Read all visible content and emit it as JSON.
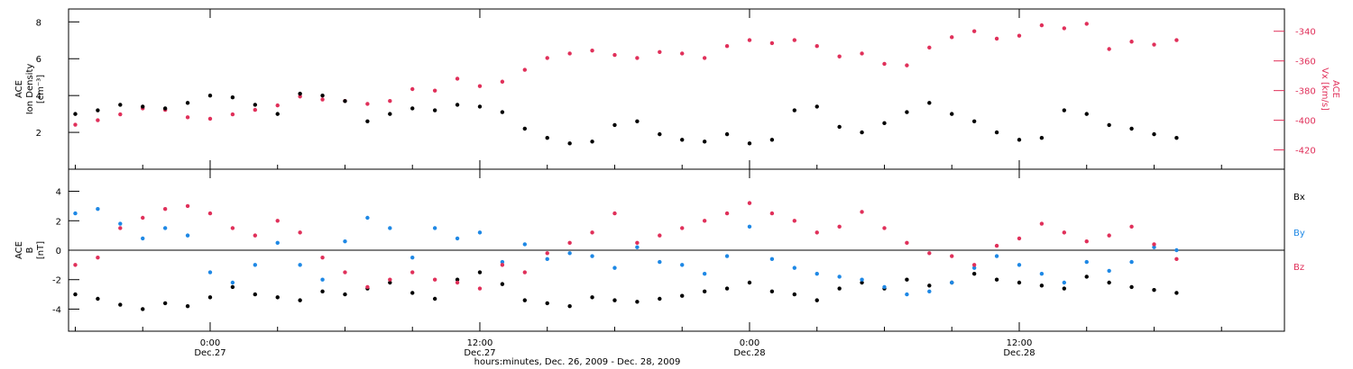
{
  "chart_data": [
    {
      "type": "scatter",
      "panel": "top",
      "ylabel_lines": [
        "ACE",
        "Ion Density",
        "[cm⁻³]"
      ],
      "ylim": [
        0,
        8.7
      ],
      "yticks": [
        2,
        4,
        6,
        8
      ],
      "y2label_lines": [
        "ACE",
        "Vx [km/s]"
      ],
      "y2lim": [
        -433,
        -325
      ],
      "y2ticks": [
        -340,
        -360,
        -380,
        -400,
        -420
      ],
      "series": [
        {
          "axis": "left",
          "color": "#000000",
          "x": [
            -6,
            -5,
            -4,
            -3,
            -2,
            -1,
            0,
            1,
            2,
            3,
            4,
            5,
            6,
            7,
            8,
            9,
            10,
            11,
            12,
            13,
            14,
            15,
            16,
            17,
            18,
            19,
            20,
            21,
            22,
            23,
            24,
            25,
            26,
            27,
            28,
            29,
            30,
            31,
            32,
            33,
            34,
            35,
            36,
            37,
            38,
            39,
            40,
            41,
            42,
            43
          ],
          "y": [
            3.0,
            3.2,
            3.5,
            3.4,
            3.3,
            3.6,
            4.0,
            3.9,
            3.5,
            3.0,
            4.1,
            4.0,
            3.7,
            2.6,
            3.0,
            3.3,
            3.2,
            3.5,
            3.4,
            3.1,
            2.2,
            1.7,
            1.4,
            1.5,
            2.4,
            2.6,
            1.9,
            1.6,
            1.5,
            1.9,
            1.4,
            1.6,
            3.2,
            3.4,
            2.3,
            2.0,
            2.5,
            3.1,
            3.6,
            3.0,
            2.6,
            2.0,
            1.6,
            1.7,
            3.2,
            3.0,
            2.4,
            2.2,
            1.9,
            1.7
          ]
        },
        {
          "axis": "right",
          "color": "#e0305a",
          "x": [
            -6,
            -5,
            -4,
            -3,
            -2,
            -1,
            0,
            1,
            2,
            3,
            4,
            5,
            6,
            7,
            8,
            9,
            10,
            11,
            12,
            13,
            14,
            15,
            16,
            17,
            18,
            19,
            20,
            21,
            22,
            23,
            24,
            25,
            26,
            27,
            28,
            29,
            30,
            31,
            32,
            33,
            34,
            35,
            36,
            37,
            38,
            39,
            40,
            41,
            42,
            43
          ],
          "y": [
            -403,
            -400,
            -396,
            -392,
            -393,
            -398,
            -399,
            -396,
            -393,
            -390,
            -384,
            -386,
            -387,
            -389,
            -387,
            -379,
            -380,
            -372,
            -377,
            -374,
            -366,
            -358,
            -355,
            -353,
            -356,
            -358,
            -354,
            -355,
            -358,
            -350,
            -346,
            -348,
            -346,
            -350,
            -357,
            -355,
            -362,
            -363,
            -351,
            -344,
            -340,
            -345,
            -343,
            -336,
            -338,
            -335,
            -352,
            -347,
            -349,
            -346
          ]
        }
      ]
    },
    {
      "type": "scatter",
      "panel": "bottom",
      "ylabel_lines": [
        "ACE",
        "B",
        "[nT]"
      ],
      "ylim": [
        -5.5,
        5.5
      ],
      "yticks": [
        -4,
        -2,
        0,
        2,
        4
      ],
      "xtick_labels": [
        [
          "0:00",
          "Dec.27"
        ],
        [
          "12:00",
          "Dec.27"
        ],
        [
          "0:00",
          "Dec.28"
        ],
        [
          "12:00",
          "Dec.28"
        ]
      ],
      "xticks_hours": [
        0,
        12,
        24,
        36
      ],
      "xlim_hours": [
        -6.3,
        47.8
      ],
      "xlabel": "hours:minutes, Dec. 26, 2009 - Dec. 28, 2009",
      "series": [
        {
          "name": "Bx",
          "color": "#000000",
          "x": [
            -6,
            -5,
            -4,
            -3,
            -2,
            -1,
            0,
            1,
            2,
            3,
            4,
            5,
            6,
            7,
            8,
            9,
            10,
            11,
            12,
            13,
            14,
            15,
            16,
            17,
            18,
            19,
            20,
            21,
            22,
            23,
            24,
            25,
            26,
            27,
            28,
            29,
            30,
            31,
            32,
            33,
            34,
            35,
            36,
            37,
            38,
            39,
            40,
            41,
            42,
            43
          ],
          "y": [
            -3.0,
            -3.3,
            -3.7,
            -4.0,
            -3.6,
            -3.8,
            -3.2,
            -2.5,
            -3.0,
            -3.2,
            -3.4,
            -2.8,
            -3.0,
            -2.6,
            -2.2,
            -2.9,
            -3.3,
            -2.0,
            -1.5,
            -2.3,
            -3.4,
            -3.6,
            -3.8,
            -3.2,
            -3.4,
            -3.5,
            -3.3,
            -3.1,
            -2.8,
            -2.6,
            -2.2,
            -2.8,
            -3.0,
            -3.4,
            -2.6,
            -2.2,
            -2.6,
            -2.0,
            -2.4,
            -2.2,
            -1.6,
            -2.0,
            -2.2,
            -2.4,
            -2.6,
            -1.8,
            -2.2,
            -2.5,
            -2.7,
            -2.9
          ]
        },
        {
          "name": "By",
          "color": "#1e88e5",
          "x": [
            -6,
            -5,
            -4,
            -3,
            -2,
            -1,
            0,
            1,
            2,
            3,
            4,
            5,
            6,
            7,
            8,
            9,
            10,
            11,
            12,
            13,
            14,
            15,
            16,
            17,
            18,
            19,
            20,
            21,
            22,
            23,
            24,
            25,
            26,
            27,
            28,
            29,
            30,
            31,
            32,
            33,
            34,
            35,
            36,
            37,
            38,
            39,
            40,
            41,
            42,
            43
          ],
          "y": [
            2.5,
            2.8,
            1.8,
            0.8,
            1.5,
            1.0,
            -1.5,
            -2.2,
            -1.0,
            0.5,
            -1.0,
            -2.0,
            0.6,
            2.2,
            1.5,
            -0.5,
            1.5,
            0.8,
            1.2,
            -0.8,
            0.4,
            -0.6,
            -0.2,
            -0.4,
            -1.2,
            0.2,
            -0.8,
            -1.0,
            -1.6,
            -0.4,
            1.6,
            -0.6,
            -1.2,
            -1.6,
            -1.8,
            -2.0,
            -2.5,
            -3.0,
            -2.8,
            -2.2,
            -1.2,
            -0.4,
            -1.0,
            -1.6,
            -2.2,
            -0.8,
            -1.4,
            -0.8,
            0.2,
            0.0
          ]
        },
        {
          "name": "Bz",
          "color": "#e0305a",
          "x": [
            -6,
            -5,
            -4,
            -3,
            -2,
            -1,
            0,
            1,
            2,
            3,
            4,
            5,
            6,
            7,
            8,
            9,
            10,
            11,
            12,
            13,
            14,
            15,
            16,
            17,
            18,
            19,
            20,
            21,
            22,
            23,
            24,
            25,
            26,
            27,
            28,
            29,
            30,
            31,
            32,
            33,
            34,
            35,
            36,
            37,
            38,
            39,
            40,
            41,
            42,
            43
          ],
          "y": [
            -1.0,
            -0.5,
            1.5,
            2.2,
            2.8,
            3.0,
            2.5,
            1.5,
            1.0,
            2.0,
            1.2,
            -0.5,
            -1.5,
            -2.5,
            -2.0,
            -1.5,
            -2.0,
            -2.2,
            -2.6,
            -1.0,
            -1.5,
            -0.2,
            0.5,
            1.2,
            2.5,
            0.5,
            1.0,
            1.5,
            2.0,
            2.5,
            3.2,
            2.5,
            2.0,
            1.2,
            1.6,
            2.6,
            1.5,
            0.5,
            -0.2,
            -0.4,
            -1.0,
            0.3,
            0.8,
            1.8,
            1.2,
            0.6,
            1.0,
            1.6,
            0.4,
            -0.6
          ]
        }
      ]
    }
  ]
}
